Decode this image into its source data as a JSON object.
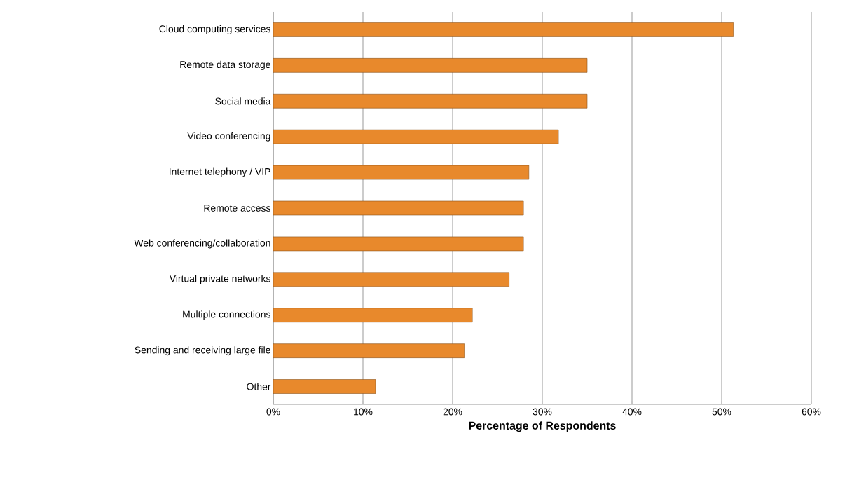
{
  "chart_data": {
    "type": "bar",
    "orientation": "horizontal",
    "xlabel": "Percentage of Respondents",
    "categories": [
      "Cloud computing services",
      "Remote data storage",
      "Social media",
      "Video conferencing",
      "Internet telephony / VIP",
      "Remote access",
      "Web conferencing/collaboration",
      "Virtual private networks",
      "Multiple connections",
      "Sending and receiving large file",
      "Other"
    ],
    "values": [
      51.3,
      35.0,
      35.0,
      31.8,
      28.5,
      27.9,
      27.9,
      26.3,
      22.2,
      21.3,
      11.4
    ],
    "color": "#e8892c",
    "xlim": [
      0,
      60
    ],
    "xticks": [
      {
        "value": 0,
        "label": "0%"
      },
      {
        "value": 10,
        "label": "10%"
      },
      {
        "value": 20,
        "label": "20%"
      },
      {
        "value": 30,
        "label": "30%"
      },
      {
        "value": 40,
        "label": "40%"
      },
      {
        "value": 50,
        "label": "50%"
      },
      {
        "value": 60,
        "label": "60%"
      }
    ],
    "grid": "x"
  }
}
